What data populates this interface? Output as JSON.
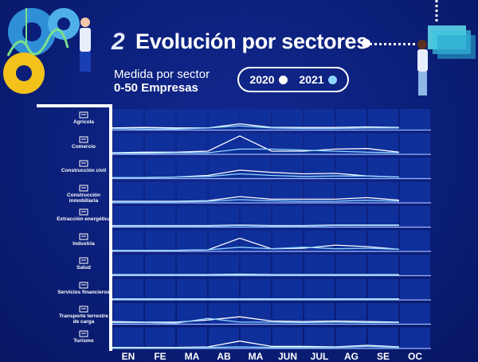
{
  "header": {
    "number": "2",
    "title": "Evolución por sectores",
    "subtitle_line1": "Medida por sector",
    "subtitle_line2": "0-50 Empresas"
  },
  "legend": [
    {
      "label": "2020",
      "color": "#ffffff"
    },
    {
      "label": "2021",
      "color": "#8fd6ff"
    }
  ],
  "colors": {
    "background": "#0b1f7a",
    "cell": "#0f2f9a",
    "line_2020": "#ffffff",
    "line_2021": "#8fd6ff"
  },
  "chart_data": {
    "type": "line",
    "categories": [
      "EN",
      "FE",
      "MA",
      "AB",
      "MA",
      "JUN",
      "JUL",
      "AG",
      "SE",
      "OC"
    ],
    "sectors": [
      {
        "name": "Agrícola",
        "icon": "tractor-icon",
        "series": [
          {
            "name": "2020",
            "values": [
              4,
              5,
              4,
              4,
              12,
              5,
              5,
              5,
              6,
              5
            ]
          },
          {
            "name": "2021",
            "values": [
              3,
              2,
              2,
              4,
              8,
              4,
              3,
              3,
              4,
              4
            ]
          }
        ]
      },
      {
        "name": "Comercio",
        "icon": "store-icon",
        "series": [
          {
            "name": "2020",
            "values": [
              3,
              4,
              4,
              6,
              35,
              6,
              6,
              10,
              11,
              4
            ]
          },
          {
            "name": "2021",
            "values": [
              2,
              2,
              3,
              3,
              10,
              10,
              8,
              6,
              4,
              3
            ]
          }
        ]
      },
      {
        "name": "Construcción civil",
        "icon": "building-icon",
        "series": [
          {
            "name": "2020",
            "values": [
              2,
              2,
              3,
              6,
              16,
              12,
              9,
              10,
              5,
              3
            ]
          },
          {
            "name": "2021",
            "values": [
              2,
              2,
              3,
              4,
              9,
              6,
              4,
              5,
              5,
              3
            ]
          }
        ]
      },
      {
        "name": "Construcción inmobiliaria",
        "icon": "house-icon",
        "series": [
          {
            "name": "2020",
            "values": [
              3,
              3,
              3,
              4,
              12,
              7,
              7,
              7,
              10,
              5
            ]
          },
          {
            "name": "2021",
            "values": [
              2,
              2,
              2,
              3,
              6,
              4,
              3,
              3,
              5,
              3
            ]
          }
        ]
      },
      {
        "name": "Extracción energética",
        "icon": "energy-icon",
        "series": [
          {
            "name": "2020",
            "values": [
              3,
              3,
              3,
              3,
              4,
              3,
              3,
              4,
              4,
              4
            ]
          },
          {
            "name": "2021",
            "values": [
              2,
              2,
              2,
              2,
              3,
              2,
              2,
              3,
              3,
              3
            ]
          }
        ]
      },
      {
        "name": "Industria",
        "icon": "factory-icon",
        "series": [
          {
            "name": "2020",
            "values": [
              2,
              2,
              2,
              3,
              25,
              5,
              6,
              12,
              9,
              4
            ]
          },
          {
            "name": "2021",
            "values": [
              2,
              2,
              2,
              3,
              8,
              5,
              8,
              5,
              6,
              4
            ]
          }
        ]
      },
      {
        "name": "Salud",
        "icon": "health-icon",
        "series": [
          {
            "name": "2020",
            "values": [
              2,
              2,
              2,
              2,
              3,
              2,
              2,
              2,
              2,
              2
            ]
          },
          {
            "name": "2021",
            "values": [
              1,
              1,
              1,
              1,
              2,
              1,
              1,
              1,
              1,
              1
            ]
          }
        ]
      },
      {
        "name": "Servicios financieros",
        "icon": "finance-icon",
        "series": [
          {
            "name": "2020",
            "values": [
              2,
              2,
              2,
              2,
              2,
              2,
              2,
              2,
              2,
              2
            ]
          },
          {
            "name": "2021",
            "values": [
              1,
              1,
              1,
              1,
              1,
              1,
              1,
              1,
              1,
              1
            ]
          }
        ]
      },
      {
        "name": "Transporte terrestre de carga",
        "icon": "truck-icon",
        "series": [
          {
            "name": "2020",
            "values": [
              5,
              4,
              4,
              8,
              14,
              6,
              5,
              6,
              5,
              4
            ]
          },
          {
            "name": "2021",
            "values": [
              3,
              3,
              2,
              11,
              4,
              4,
              3,
              4,
              3,
              3
            ]
          }
        ]
      },
      {
        "name": "Turismo",
        "icon": "tourism-icon",
        "series": [
          {
            "name": "2020",
            "values": [
              2,
              2,
              2,
              3,
              14,
              4,
              4,
              3,
              6,
              3
            ]
          },
          {
            "name": "2021",
            "values": [
              1,
              1,
              1,
              2,
              3,
              2,
              2,
              2,
              4,
              2
            ]
          }
        ]
      }
    ],
    "ylim": [
      0,
      40
    ],
    "grid": true
  }
}
